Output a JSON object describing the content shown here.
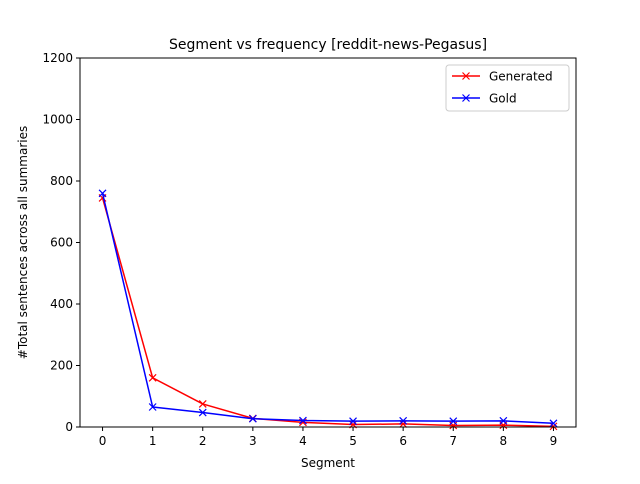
{
  "chart_data": {
    "type": "line",
    "title": "Segment vs frequency [reddit-news-Pegasus]",
    "xlabel": "Segment",
    "ylabel": "#Total sentences across all summaries",
    "x": [
      0,
      1,
      2,
      3,
      4,
      5,
      6,
      7,
      8,
      9
    ],
    "xlim": [
      -0.45,
      9.45
    ],
    "ylim": [
      0,
      1200
    ],
    "xticks": [
      "0",
      "1",
      "2",
      "3",
      "4",
      "5",
      "6",
      "7",
      "8",
      "9"
    ],
    "yticks": [
      0,
      200,
      400,
      600,
      800,
      1000,
      1200
    ],
    "grid": false,
    "legend_position": "top-right",
    "marker": "x",
    "series": [
      {
        "name": "Generated",
        "color": "#ff0000",
        "values": [
          745,
          160,
          75,
          28,
          15,
          8,
          10,
          5,
          6,
          2
        ]
      },
      {
        "name": "Gold",
        "color": "#0000ff",
        "values": [
          760,
          65,
          47,
          27,
          21,
          19,
          20,
          19,
          20,
          12
        ]
      }
    ]
  }
}
